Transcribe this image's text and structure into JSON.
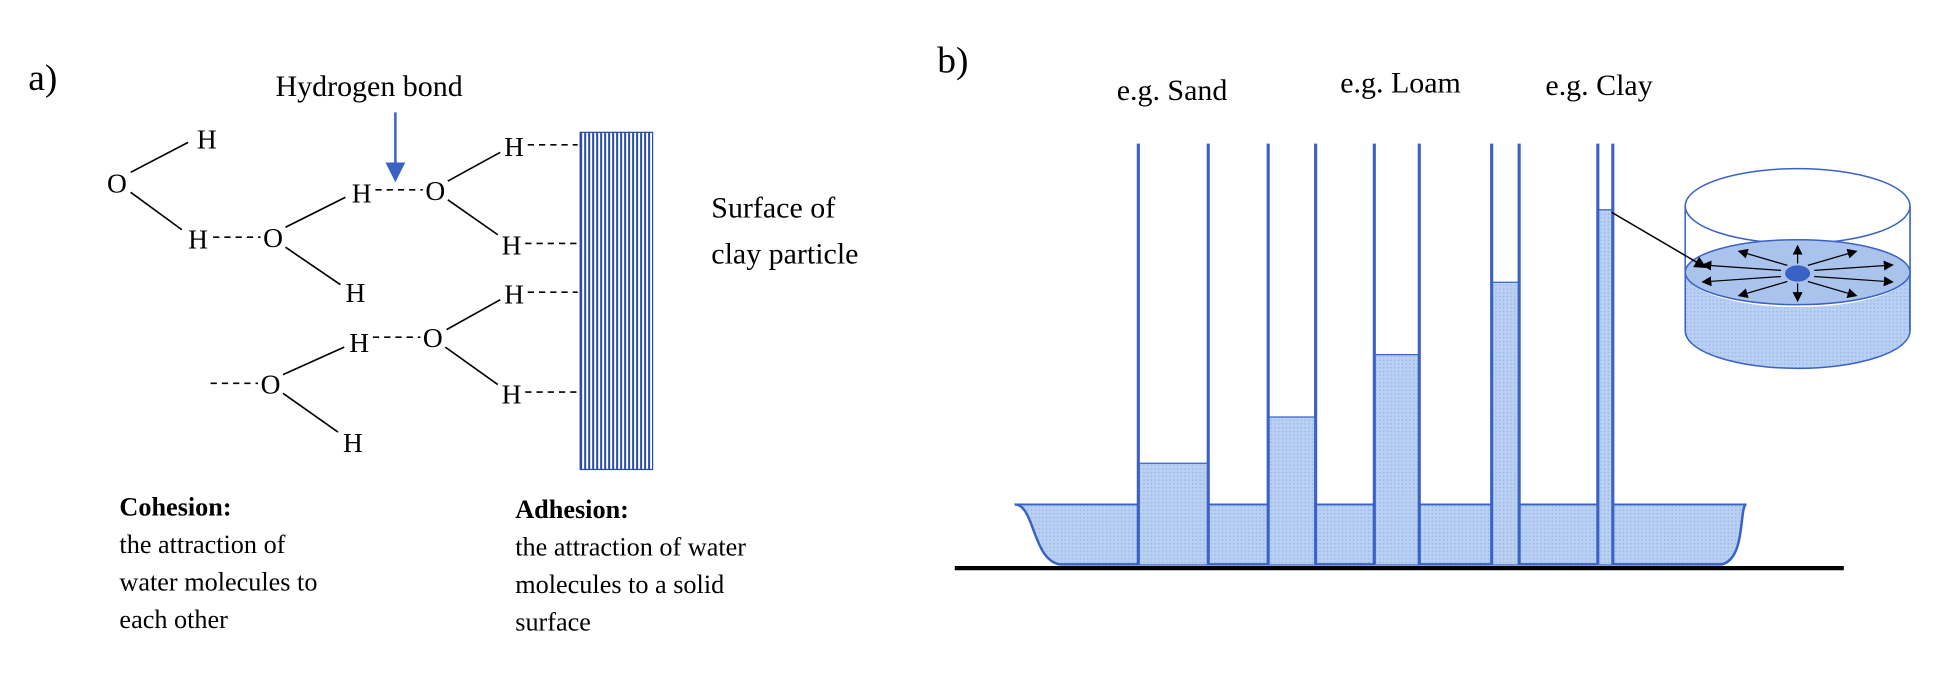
{
  "panel_a": {
    "label": "a)",
    "hydrogen_bond": "Hydrogen bond",
    "surface_label": [
      "Surface of",
      "clay particle"
    ],
    "atoms": [
      "H",
      "O",
      "H",
      "O",
      "H",
      "H",
      "O",
      "H",
      "H",
      "H",
      "O",
      "H",
      "H",
      "O",
      "H"
    ],
    "cohesion": {
      "title": "Cohesion:",
      "lines": [
        "the attraction of",
        "water molecules to",
        "each other"
      ]
    },
    "adhesion": {
      "title": "Adhesion:",
      "lines": [
        "the attraction of water",
        "molecules to a solid",
        "surface"
      ]
    }
  },
  "panel_b": {
    "label": "b)",
    "tubes": [
      "e.g. Sand",
      "e.g. Loam",
      "e.g. Clay"
    ]
  }
}
